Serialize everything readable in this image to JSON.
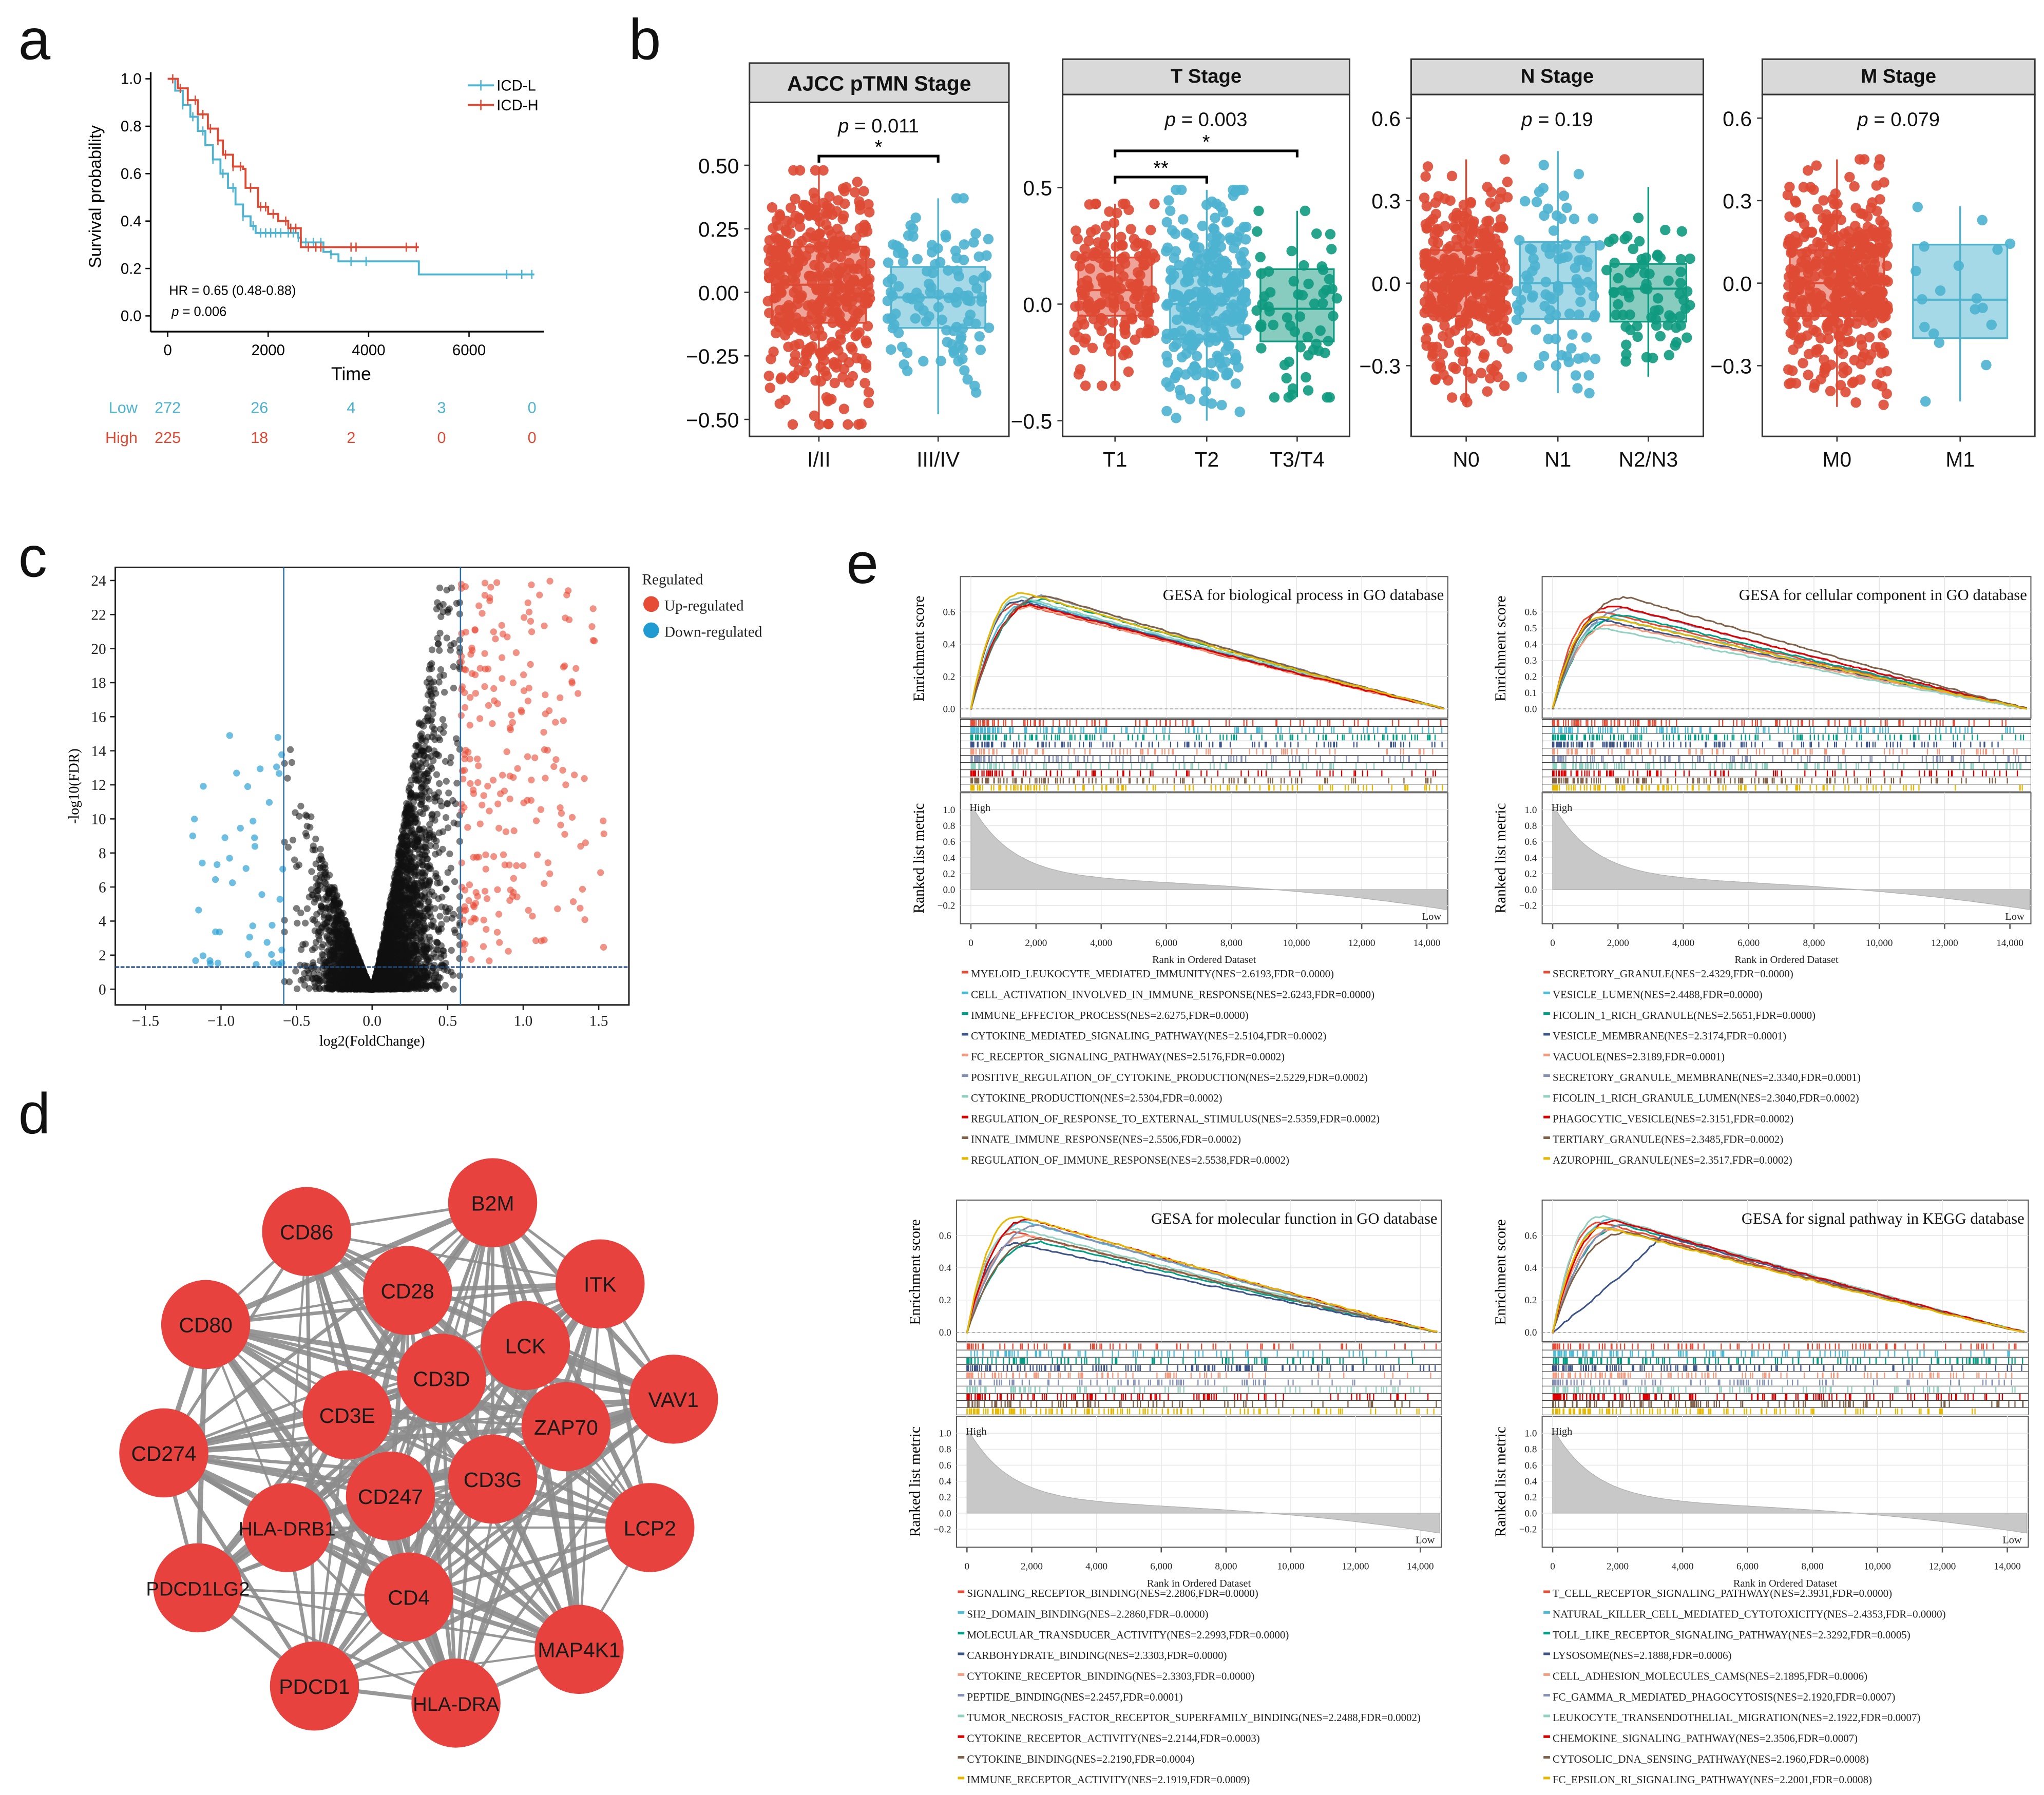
{
  "panel_labels": {
    "a": "a",
    "b": "b",
    "c": "c",
    "d": "d",
    "e": "e"
  },
  "colors": {
    "icd_l": "#4db3cf",
    "icd_h": "#de4a34",
    "green": "#0f9a80",
    "node": "#e8423f",
    "edge": "#8c8c8c",
    "gsea_series": [
      "#e64b35",
      "#4dbbd5",
      "#00a087",
      "#3c5488",
      "#f39b7f",
      "#8491b4",
      "#91d1c2",
      "#dc0000",
      "#7e6148",
      "#e6b800"
    ]
  },
  "chart_data": [
    {
      "id": "a",
      "type": "line",
      "xlabel": "Time",
      "ylabel": "Survival probability",
      "xticks": [
        "0",
        "2000",
        "4000",
        "6000"
      ],
      "xtick_values": [
        0,
        2000,
        4000,
        6000
      ],
      "yticks": [
        "0.0",
        "0.2",
        "0.4",
        "0.6",
        "0.8",
        "1.0"
      ],
      "ytick_values": [
        0,
        0.2,
        0.4,
        0.6,
        0.8,
        1.0
      ],
      "xlim": [
        0,
        7300
      ],
      "ylim": [
        0,
        1
      ],
      "legend": [
        "ICD-L",
        "ICD-H"
      ],
      "hr_text": "HR = 0.65 (0.48-0.88)",
      "p_label": "p",
      "p_value": " = 0.006",
      "series": [
        {
          "name": "ICD-L",
          "x": [
            0,
            150,
            300,
            450,
            600,
            750,
            900,
            1050,
            1200,
            1350,
            1500,
            1650,
            1750,
            2600,
            2650,
            3100,
            3250,
            3400,
            4950,
            5000,
            7300
          ],
          "y": [
            1,
            0.95,
            0.89,
            0.84,
            0.78,
            0.72,
            0.66,
            0.6,
            0.54,
            0.47,
            0.42,
            0.38,
            0.35,
            0.33,
            0.31,
            0.27,
            0.26,
            0.23,
            0.23,
            0.175,
            0.175
          ],
          "censor": [
            300,
            500,
            700,
            900,
            1100,
            1300,
            1500,
            1700,
            1850,
            1950,
            2050,
            2150,
            2250,
            2400,
            2500,
            2600,
            2750,
            2900,
            3050,
            3250,
            3650,
            3950,
            6750,
            7050,
            7250
          ]
        },
        {
          "name": "ICD-H",
          "x": [
            0,
            200,
            400,
            600,
            800,
            1000,
            1100,
            1300,
            1500,
            1550,
            1800,
            2000,
            2200,
            2400,
            2600,
            2650,
            5000
          ],
          "y": [
            1,
            0.96,
            0.91,
            0.85,
            0.79,
            0.74,
            0.68,
            0.63,
            0.62,
            0.54,
            0.46,
            0.43,
            0.4,
            0.37,
            0.37,
            0.29,
            0.29
          ],
          "censor": [
            100,
            250,
            400,
            550,
            700,
            850,
            1000,
            1150,
            1300,
            1450,
            1650,
            1850,
            1950,
            2100,
            2350,
            2450,
            2550,
            2800,
            2950,
            3050,
            3650,
            3750,
            4750,
            4950
          ]
        }
      ],
      "risk_table": {
        "rows": [
          {
            "label": "Low",
            "values": [
              "272",
              "26",
              "4",
              "3",
              "0"
            ]
          },
          {
            "label": "High",
            "values": [
              "225",
              "18",
              "2",
              "0",
              "0"
            ]
          }
        ]
      }
    },
    {
      "id": "b",
      "type": "box",
      "panels": [
        {
          "title": "AJCC pTMN Stage",
          "p_label": "p",
          "p_value": " = 0.011",
          "yticks": [
            "0.50",
            "0.25",
            "0.00",
            "−0.25",
            "−0.50"
          ],
          "ytick_values": [
            0.5,
            0.25,
            0,
            -0.25,
            -0.5
          ],
          "groups": [
            {
              "name": "I/II",
              "color": "#de4a34",
              "low": -0.52,
              "q1": -0.12,
              "median": 0.03,
              "q3": 0.18,
              "high": 0.48,
              "n": 380
            },
            {
              "name": "III/IV",
              "color": "#4db3cf",
              "low": -0.48,
              "q1": -0.14,
              "median": -0.02,
              "q3": 0.1,
              "high": 0.37,
              "n": 110
            }
          ],
          "significance": [
            {
              "from": 0,
              "to": 1,
              "label": "*"
            }
          ]
        },
        {
          "title": "T Stage",
          "p_label": "p",
          "p_value": " = 0.003",
          "yticks": [
            "0.5",
            "0.0",
            "−0.5"
          ],
          "ytick_values": [
            0.5,
            0,
            -0.5
          ],
          "groups": [
            {
              "name": "T1",
              "color": "#de4a34",
              "low": -0.35,
              "q1": -0.05,
              "median": 0.06,
              "q3": 0.2,
              "high": 0.43,
              "n": 170
            },
            {
              "name": "T2",
              "color": "#4db3cf",
              "low": -0.5,
              "q1": -0.15,
              "median": 0.0,
              "q3": 0.15,
              "high": 0.49,
              "n": 260
            },
            {
              "name": "T3/T4",
              "color": "#0f9a80",
              "low": -0.4,
              "q1": -0.16,
              "median": -0.02,
              "q3": 0.15,
              "high": 0.4,
              "n": 60
            }
          ],
          "significance": [
            {
              "from": 0,
              "to": 2,
              "label": "*"
            },
            {
              "from": 0,
              "to": 1,
              "label": "**"
            }
          ]
        },
        {
          "title": "N Stage",
          "p_label": "p",
          "p_value": " = 0.19",
          "yticks": [
            "0.6",
            "0.3",
            "0.0",
            "−0.3"
          ],
          "ytick_values": [
            0.6,
            0.3,
            0,
            -0.3
          ],
          "groups": [
            {
              "name": "N0",
              "color": "#de4a34",
              "low": -0.45,
              "q1": -0.12,
              "median": 0.02,
              "q3": 0.12,
              "high": 0.45,
              "n": 330
            },
            {
              "name": "N1",
              "color": "#4db3cf",
              "low": -0.4,
              "q1": -0.13,
              "median": 0.0,
              "q3": 0.15,
              "high": 0.48,
              "n": 90
            },
            {
              "name": "N2/N3",
              "color": "#0f9a80",
              "low": -0.34,
              "q1": -0.14,
              "median": -0.02,
              "q3": 0.07,
              "high": 0.35,
              "n": 70
            }
          ],
          "significance": []
        },
        {
          "title": "M Stage",
          "p_label": "p",
          "p_value": " = 0.079",
          "yticks": [
            "0.6",
            "0.3",
            "0.0",
            "−0.3"
          ],
          "ytick_values": [
            0.6,
            0.3,
            0,
            -0.3
          ],
          "groups": [
            {
              "name": "M0",
              "color": "#de4a34",
              "low": -0.45,
              "q1": -0.12,
              "median": 0.0,
              "q3": 0.12,
              "high": 0.45,
              "n": 420
            },
            {
              "name": "M1",
              "color": "#4db3cf",
              "low": -0.43,
              "q1": -0.2,
              "median": -0.06,
              "q3": 0.14,
              "high": 0.28,
              "n": 18
            }
          ],
          "significance": []
        }
      ]
    },
    {
      "id": "c",
      "type": "scatter",
      "xlabel": "log2(FoldChange)",
      "ylabel": "-log10(FDR)",
      "xticks": [
        "−1.5",
        "−1.0",
        "−0.5",
        "0.0",
        "0.5",
        "1.0",
        "1.5"
      ],
      "xtick_values": [
        -1.5,
        -1,
        -0.5,
        0,
        0.5,
        1,
        1.5
      ],
      "yticks": [
        "0",
        "2",
        "4",
        "6",
        "8",
        "10",
        "12",
        "14",
        "16",
        "18",
        "20",
        "22",
        "24"
      ],
      "ytick_values": [
        0,
        2,
        4,
        6,
        8,
        10,
        12,
        14,
        16,
        18,
        20,
        22,
        24
      ],
      "xlim": [
        -1.7,
        1.7
      ],
      "ylim": [
        -0.8,
        24.8
      ],
      "thresholds": {
        "log2fc": 0.585,
        "neg_log10_fdr": 1.3
      },
      "legend_title": "Regulated",
      "legend": [
        {
          "label": "Up-regulated",
          "color": "#e64b35"
        },
        {
          "label": "Down-regulated",
          "color": "#1f9bd1"
        }
      ],
      "groups": {
        "not_significant": 4200,
        "up_regulated": 220,
        "down_regulated": 45
      }
    },
    {
      "id": "d",
      "type": "network",
      "nodes": [
        "B2M",
        "CD86",
        "CD28",
        "ITK",
        "CD80",
        "LCK",
        "CD3D",
        "VAV1",
        "CD3E",
        "ZAP70",
        "CD274",
        "CD247",
        "CD3G",
        "HLA-DRB1",
        "LCP2",
        "PDCD1LG2",
        "CD4",
        "MAP4K1",
        "PDCD1",
        "HLA-DRA"
      ]
    },
    {
      "id": "e",
      "type": "line",
      "es_label": "Enrichment score",
      "metric_label": "Ranked list metric",
      "high_label": "High",
      "low_label": "Low",
      "xlabel": "Rank in Ordered Dataset",
      "xticks": [
        "0",
        "2,000",
        "4,000",
        "6,000",
        "8,000",
        "10,000",
        "12,000",
        "14,000"
      ],
      "xtick_values": [
        0,
        2000,
        4000,
        6000,
        8000,
        10000,
        12000,
        14000
      ],
      "metric_yticks": [
        "1.0",
        "0.8",
        "0.6",
        "0.4",
        "0.2",
        "0.0",
        "−0.2"
      ],
      "metric_ytick_values": [
        1,
        0.8,
        0.6,
        0.4,
        0.2,
        0,
        -0.2
      ],
      "panels": [
        {
          "title": "GESA for biological process in GO database",
          "es_yticks": [
            "0.0",
            "0.2",
            "0.4",
            "0.6"
          ],
          "es_ytick_values": [
            0,
            0.2,
            0.4,
            0.6
          ],
          "peaks": [
            0.65,
            0.66,
            0.68,
            0.67,
            0.63,
            0.7,
            0.69,
            0.64,
            0.7,
            0.72
          ],
          "legend": [
            "MYELOID_LEUKOCYTE_MEDIATED_IMMUNITY(NES=2.6193,FDR=0.0000)",
            "CELL_ACTIVATION_INVOLVED_IN_IMMUNE_RESPONSE(NES=2.6243,FDR=0.0000)",
            "IMMUNE_EFFECTOR_PROCESS(NES=2.6275,FDR=0.0000)",
            "CYTOKINE_MEDIATED_SIGNALING_PATHWAY(NES=2.5104,FDR=0.0002)",
            "FC_RECEPTOR_SIGNALING_PATHWAY(NES=2.5176,FDR=0.0002)",
            "POSITIVE_REGULATION_OF_CYTOKINE_PRODUCTION(NES=2.5229,FDR=0.0002)",
            "CYTOKINE_PRODUCTION(NES=2.5304,FDR=0.0002)",
            "REGULATION_OF_RESPONSE_TO_EXTERNAL_STIMULUS(NES=2.5359,FDR=0.0002)",
            "INNATE_IMMUNE_RESPONSE(NES=2.5506,FDR=0.0002)",
            "REGULATION_OF_IMMUNE_RESPONSE(NES=2.5538,FDR=0.0002)"
          ]
        },
        {
          "title": "GESA for cellular component in GO database",
          "es_yticks": [
            "0.0",
            "0.1",
            "0.2",
            "0.3",
            "0.4",
            "0.5",
            "0.6"
          ],
          "es_ytick_values": [
            0,
            0.1,
            0.2,
            0.3,
            0.4,
            0.5,
            0.6
          ],
          "peaks": [
            0.6,
            0.56,
            0.58,
            0.55,
            0.52,
            0.62,
            0.5,
            0.64,
            0.69,
            0.57
          ],
          "legend": [
            "SECRETORY_GRANULE(NES=2.4329,FDR=0.0000)",
            "VESICLE_LUMEN(NES=2.4488,FDR=0.0000)",
            "FICOLIN_1_RICH_GRANULE(NES=2.5651,FDR=0.0000)",
            "VESICLE_MEMBRANE(NES=2.3174,FDR=0.0001)",
            "VACUOLE(NES=2.3189,FDR=0.0001)",
            "SECRETORY_GRANULE_MEMBRANE(NES=2.3340,FDR=0.0001)",
            "FICOLIN_1_RICH_GRANULE_LUMEN(NES=2.3040,FDR=0.0002)",
            "PHAGOCYTIC_VESICLE(NES=2.3151,FDR=0.0002)",
            "TERTIARY_GRANULE(NES=2.3485,FDR=0.0002)",
            "AZUROPHIL_GRANULE(NES=2.3517,FDR=0.0002)"
          ]
        },
        {
          "title": "GESA for molecular function  in GO database",
          "es_yticks": [
            "0.0",
            "0.2",
            "0.4",
            "0.6"
          ],
          "es_ytick_values": [
            0,
            0.2,
            0.4,
            0.6
          ],
          "peaks": [
            0.62,
            0.68,
            0.56,
            0.55,
            0.6,
            0.66,
            0.64,
            0.7,
            0.58,
            0.72
          ],
          "legend": [
            "SIGNALING_RECEPTOR_BINDING(NES=2.2806,FDR=0.0000)",
            "SH2_DOMAIN_BINDING(NES=2.2860,FDR=0.0000)",
            "MOLECULAR_TRANSDUCER_ACTIVITY(NES=2.2993,FDR=0.0000)",
            "CARBOHYDRATE_BINDING(NES=2.3303,FDR=0.0000)",
            "CYTOKINE_RECEPTOR_BINDING(NES=2.3303,FDR=0.0000)",
            "PEPTIDE_BINDING(NES=2.2457,FDR=0.0001)",
            "TUMOR_NECROSIS_FACTOR_RECEPTOR_SUPERFAMILY_BINDING(NES=2.2488,FDR=0.0002)",
            "CYTOKINE_RECEPTOR_ACTIVITY(NES=2.2144,FDR=0.0003)",
            "CYTOKINE_BINDING(NES=2.2190,FDR=0.0004)",
            "IMMUNE_RECEPTOR_ACTIVITY(NES=2.1919,FDR=0.0009)"
          ]
        },
        {
          "title": "GESA for signal pathway  in KEGG database",
          "es_yticks": [
            "0.0",
            "0.2",
            "0.4",
            "0.6"
          ],
          "es_ytick_values": [
            0,
            0.2,
            0.4,
            0.6
          ],
          "peaks": [
            0.68,
            0.7,
            0.66,
            0.6,
            0.64,
            0.67,
            0.72,
            0.69,
            0.62,
            0.65
          ],
          "legend": [
            "T_CELL_RECEPTOR_SIGNALING_PATHWAY(NES=2.3931,FDR=0.0000)",
            "NATURAL_KILLER_CELL_MEDIATED_CYTOTOXICITY(NES=2.4353,FDR=0.0000)",
            "TOLL_LIKE_RECEPTOR_SIGNALING_PATHWAY(NES=2.3292,FDR=0.0005)",
            "LYSOSOME(NES=2.1888,FDR=0.0006)",
            "CELL_ADHESION_MOLECULES_CAMS(NES=2.1895,FDR=0.0006)",
            "FC_GAMMA_R_MEDIATED_PHAGOCYTOSIS(NES=2.1920,FDR=0.0007)",
            "LEUKOCYTE_TRANSENDOTHELIAL_MIGRATION(NES=2.1922,FDR=0.0007)",
            "CHEMOKINE_SIGNALING_PATHWAY(NES=2.3506,FDR=0.0007)",
            "CYTOSOLIC_DNA_SENSING_PATHWAY(NES=2.1960,FDR=0.0008)",
            "FC_EPSILON_RI_SIGNALING_PATHWAY(NES=2.2001,FDR=0.0008)"
          ]
        }
      ]
    }
  ]
}
